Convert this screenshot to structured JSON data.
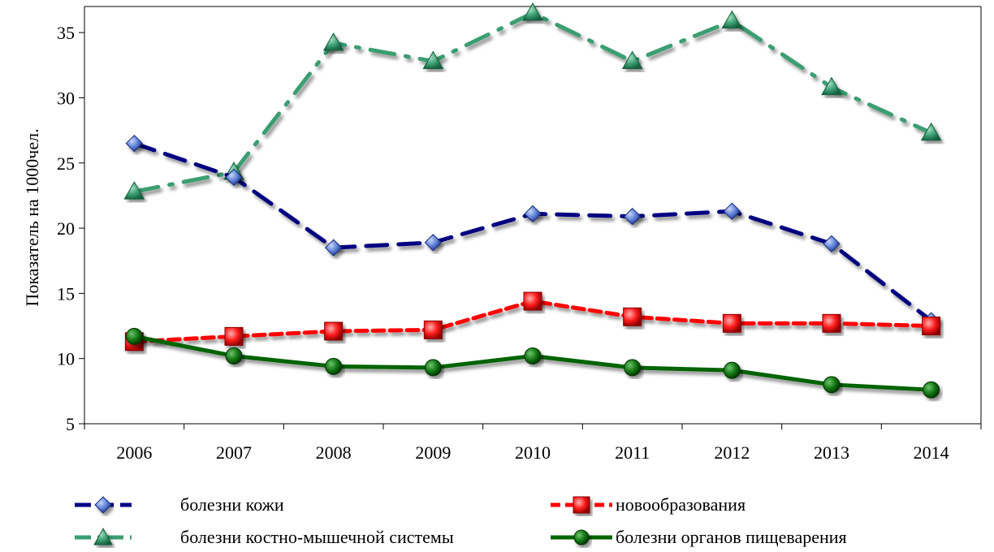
{
  "chart_data": {
    "type": "line",
    "categories": [
      "2006",
      "2007",
      "2008",
      "2009",
      "2010",
      "2011",
      "2012",
      "2013",
      "2014"
    ],
    "ylabel": "Показатель на 1000чел.",
    "xlabel": "",
    "ylim": [
      5,
      37
    ],
    "yticks": [
      5,
      10,
      15,
      20,
      25,
      30,
      35
    ],
    "grid": false,
    "legend_position": "bottom",
    "series": [
      {
        "name": "болезни кожи",
        "values": [
          26.5,
          23.9,
          18.5,
          18.9,
          21.1,
          20.9,
          21.3,
          18.8,
          12.9
        ],
        "color": "#000080",
        "marker_color": "#5B7FD6",
        "marker": "diamond",
        "dash": "long-dash"
      },
      {
        "name": "болезни костно-мышечной системы",
        "values": [
          22.8,
          24.3,
          34.2,
          32.8,
          36.5,
          32.8,
          35.9,
          30.8,
          27.3
        ],
        "color": "#3A9E72",
        "marker_color": "#3A9E72",
        "marker": "triangle",
        "dash": "long-dash-dot"
      },
      {
        "name": "новообразования",
        "values": [
          11.3,
          11.7,
          12.1,
          12.2,
          14.4,
          13.2,
          12.7,
          12.7,
          12.5
        ],
        "color": "#FF0000",
        "marker_color": "#FF0000",
        "marker": "square",
        "dash": "dash"
      },
      {
        "name": "болезни органов пищеварения",
        "values": [
          11.7,
          10.2,
          9.4,
          9.3,
          10.2,
          9.3,
          9.1,
          8.0,
          7.6
        ],
        "color": "#006400",
        "marker_color": "#0E6B0E",
        "marker": "circle",
        "dash": "solid"
      }
    ]
  }
}
